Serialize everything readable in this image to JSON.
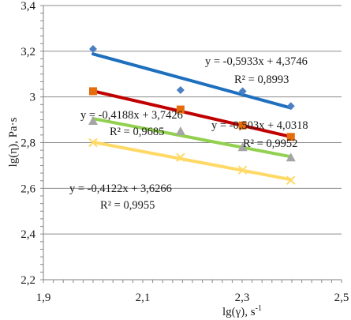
{
  "chart_data": {
    "type": "scatter",
    "xlabel": "lg(γ), s",
    "xlabel_sup": "-1",
    "ylabel": "lg(η), Pa·s",
    "xlim": [
      1.9,
      2.5
    ],
    "ylim": [
      2.2,
      3.4
    ],
    "x_ticks": [
      1.9,
      2.1,
      2.3,
      2.5
    ],
    "x_tick_labels": [
      "1,9",
      "2,1",
      "2,3",
      "2,5"
    ],
    "y_ticks": [
      2.2,
      2.4,
      2.6,
      2.8,
      3.0,
      3.2,
      3.4
    ],
    "y_tick_labels": [
      "2,2",
      "2,4",
      "2,6",
      "2,8",
      "3",
      "3,2",
      "3,4"
    ],
    "grid": "horizontal",
    "legend": "none",
    "series": [
      {
        "marker": "diamond",
        "marker_color": "#4a7fc4",
        "line_color": "#1f6fbf",
        "x": [
          2.0,
          2.176,
          2.301,
          2.398
        ],
        "y": [
          3.21,
          3.03,
          3.025,
          2.96
        ],
        "trend": {
          "slope": -0.5933,
          "intercept": 4.3746
        },
        "equation": "y = -0,5933x + 4,3746",
        "r2": "R² = 0,8993"
      },
      {
        "marker": "square",
        "marker_color": "#e46c0a",
        "line_color": "#c00000",
        "x": [
          2.0,
          2.176,
          2.301,
          2.398
        ],
        "y": [
          3.025,
          2.945,
          2.875,
          2.825
        ],
        "trend": {
          "slope": -0.503,
          "intercept": 4.0318
        },
        "equation": "y = -0,503x + 4,0318",
        "r2": "R² = 0,9952"
      },
      {
        "marker": "triangle",
        "marker_color": "#a5a5a5",
        "line_color": "#92d050",
        "x": [
          2.0,
          2.176,
          2.301,
          2.398
        ],
        "y": [
          2.895,
          2.85,
          2.78,
          2.735
        ],
        "trend": {
          "slope": -0.4188,
          "intercept": 3.7426
        },
        "equation": "y = -0,4188x + 3,7426",
        "r2": "R² = 0,9685"
      },
      {
        "marker": "x",
        "marker_color": "#ffd966",
        "line_color": "#ffd966",
        "x": [
          2.0,
          2.176,
          2.301,
          2.398
        ],
        "y": [
          2.8,
          2.735,
          2.68,
          2.635
        ],
        "trend": {
          "slope": -0.4122,
          "intercept": 3.6266
        },
        "equation": "y = -0,4122x + 3,6266",
        "r2": "R² = 0,9955"
      }
    ]
  }
}
